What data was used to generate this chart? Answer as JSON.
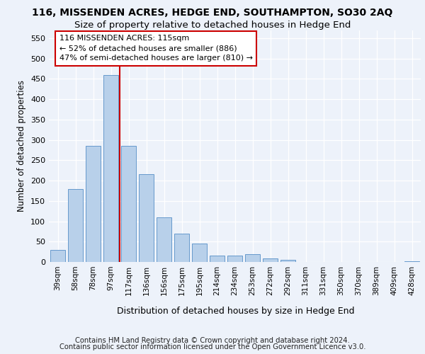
{
  "title1": "116, MISSENDEN ACRES, HEDGE END, SOUTHAMPTON, SO30 2AQ",
  "title2": "Size of property relative to detached houses in Hedge End",
  "xlabel": "Distribution of detached houses by size in Hedge End",
  "ylabel": "Number of detached properties",
  "categories": [
    "39sqm",
    "58sqm",
    "78sqm",
    "97sqm",
    "117sqm",
    "136sqm",
    "156sqm",
    "175sqm",
    "195sqm",
    "214sqm",
    "234sqm",
    "253sqm",
    "272sqm",
    "292sqm",
    "311sqm",
    "331sqm",
    "350sqm",
    "370sqm",
    "389sqm",
    "409sqm",
    "428sqm"
  ],
  "values": [
    30,
    180,
    285,
    460,
    285,
    215,
    110,
    70,
    45,
    15,
    15,
    20,
    8,
    5,
    0,
    0,
    0,
    0,
    0,
    0,
    2
  ],
  "bar_color": "#b8d0ea",
  "bar_edge_color": "#6699cc",
  "vline_color": "#cc0000",
  "annotation_text": "116 MISSENDEN ACRES: 115sqm\n← 52% of detached houses are smaller (886)\n47% of semi-detached houses are larger (810) →",
  "annotation_box_facecolor": "#ffffff",
  "annotation_box_edgecolor": "#cc0000",
  "ylim_max": 570,
  "yticks": [
    0,
    50,
    100,
    150,
    200,
    250,
    300,
    350,
    400,
    450,
    500,
    550
  ],
  "footer1": "Contains HM Land Registry data © Crown copyright and database right 2024.",
  "footer2": "Contains public sector information licensed under the Open Government Licence v3.0.",
  "bg_color": "#edf2fa",
  "grid_color": "#ffffff"
}
